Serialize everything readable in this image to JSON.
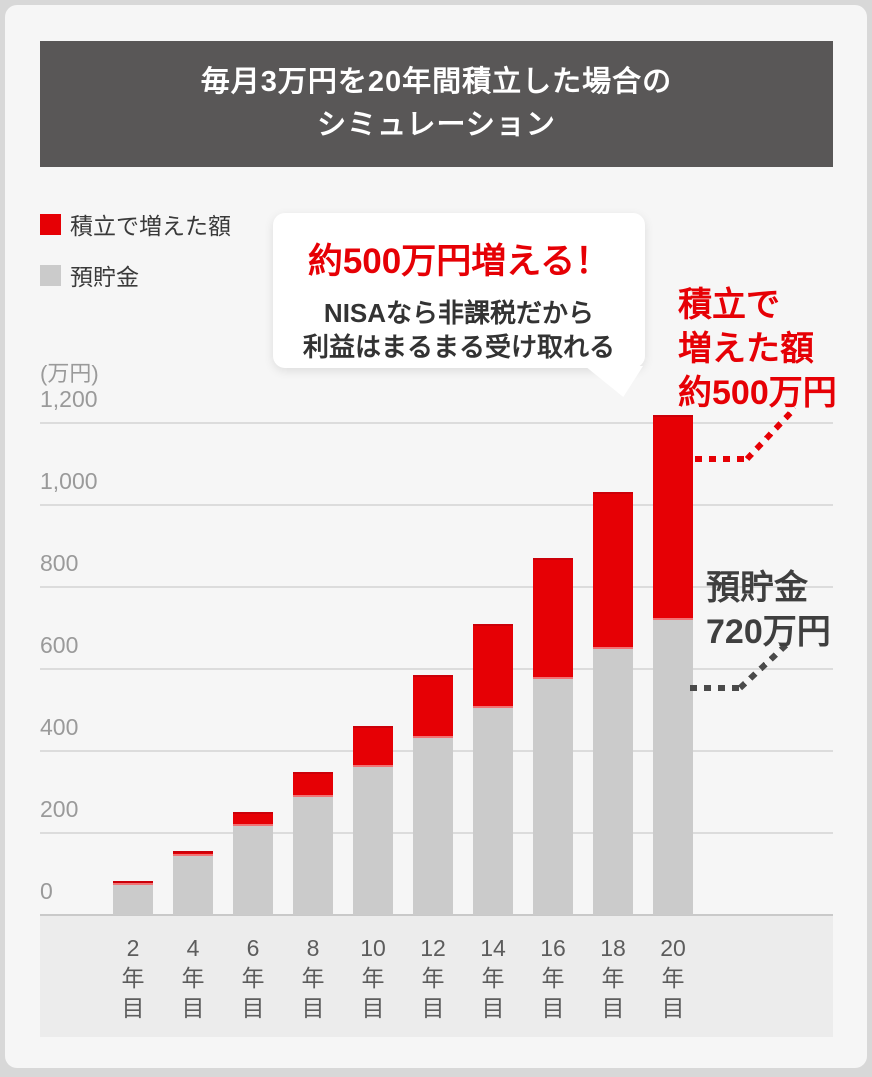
{
  "header": {
    "title_line1": "毎月3万円を20年間積立した場合の",
    "title_line2": "シミュレーション"
  },
  "legend": {
    "items": [
      {
        "label": "積立で増えた額",
        "color": "#e60005"
      },
      {
        "label": "預貯金",
        "color": "#cbcbcb"
      }
    ]
  },
  "bubble": {
    "headline": "約500万円増える！",
    "body_line1": "NISAなら非課税だから",
    "body_line2": "利益はまるまる受け取れる"
  },
  "annotations": {
    "gain": {
      "line1": "積立で",
      "line2": "増えた額",
      "line3": "約500万円",
      "color": "#e60005"
    },
    "savings": {
      "line1": "預貯金",
      "line2": "720万円",
      "color": "#3f3f3f"
    }
  },
  "chart_data": {
    "type": "bar",
    "stacked": true,
    "title": "毎月3万円を20年間積立した場合のシミュレーション",
    "unit_label": "(万円)",
    "categories": [
      "2年目",
      "4年目",
      "6年目",
      "8年目",
      "10年目",
      "12年目",
      "14年目",
      "16年目",
      "18年目",
      "20年目"
    ],
    "series": [
      {
        "name": "預貯金",
        "color": "#cbcbcb",
        "values": [
          72,
          144,
          216,
          288,
          360,
          432,
          504,
          576,
          648,
          720
        ]
      },
      {
        "name": "積立で増えた額",
        "color": "#e60005",
        "values": [
          4,
          11,
          34,
          62,
          100,
          153,
          206,
          294,
          382,
          500
        ]
      }
    ],
    "y_tick_labels": [
      "1,200",
      "1,000",
      "800",
      "600",
      "400",
      "200",
      "0"
    ],
    "y_tick_values": [
      1200,
      1000,
      800,
      600,
      400,
      200,
      0
    ],
    "ylim": [
      0,
      1200
    ],
    "grid": true,
    "legend_position": "top-left",
    "final_bar_notes": {
      "gain": "約500万円",
      "savings": "720万円"
    }
  }
}
